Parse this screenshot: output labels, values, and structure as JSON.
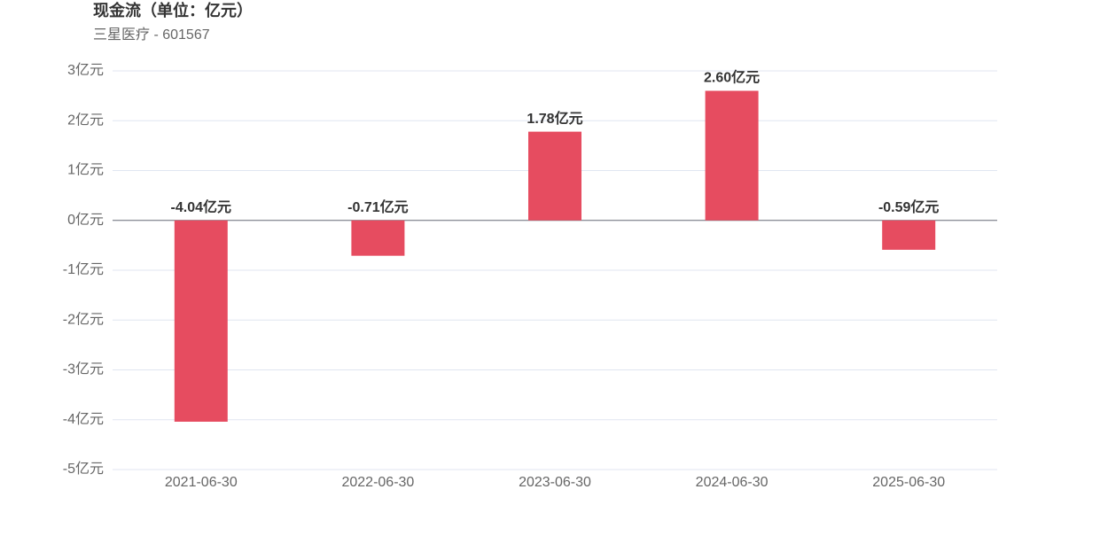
{
  "chart_data": {
    "type": "bar",
    "title": "现金流（单位：亿元）",
    "subtitle": "三星医疗 - 601567",
    "categories": [
      "2021-06-30",
      "2022-06-30",
      "2023-06-30",
      "2024-06-30",
      "2025-06-30"
    ],
    "values": [
      -4.04,
      -0.71,
      1.78,
      2.6,
      -0.59
    ],
    "value_labels": [
      "-4.04亿元",
      "-0.71亿元",
      "1.78亿元",
      "2.60亿元",
      "-0.59亿元"
    ],
    "color": "#e64c60",
    "ylim": [
      -5,
      3
    ],
    "yticks": [
      {
        "value": 3,
        "label": "3亿元"
      },
      {
        "value": 2,
        "label": "2亿元"
      },
      {
        "value": 1,
        "label": "1亿元"
      },
      {
        "value": 0,
        "label": "0亿元"
      },
      {
        "value": -1,
        "label": "-1亿元"
      },
      {
        "value": -2,
        "label": "-2亿元"
      },
      {
        "value": -3,
        "label": "-3亿元"
      },
      {
        "value": -4,
        "label": "-4亿元"
      },
      {
        "value": -5,
        "label": "-5亿元"
      }
    ],
    "grid": true
  }
}
